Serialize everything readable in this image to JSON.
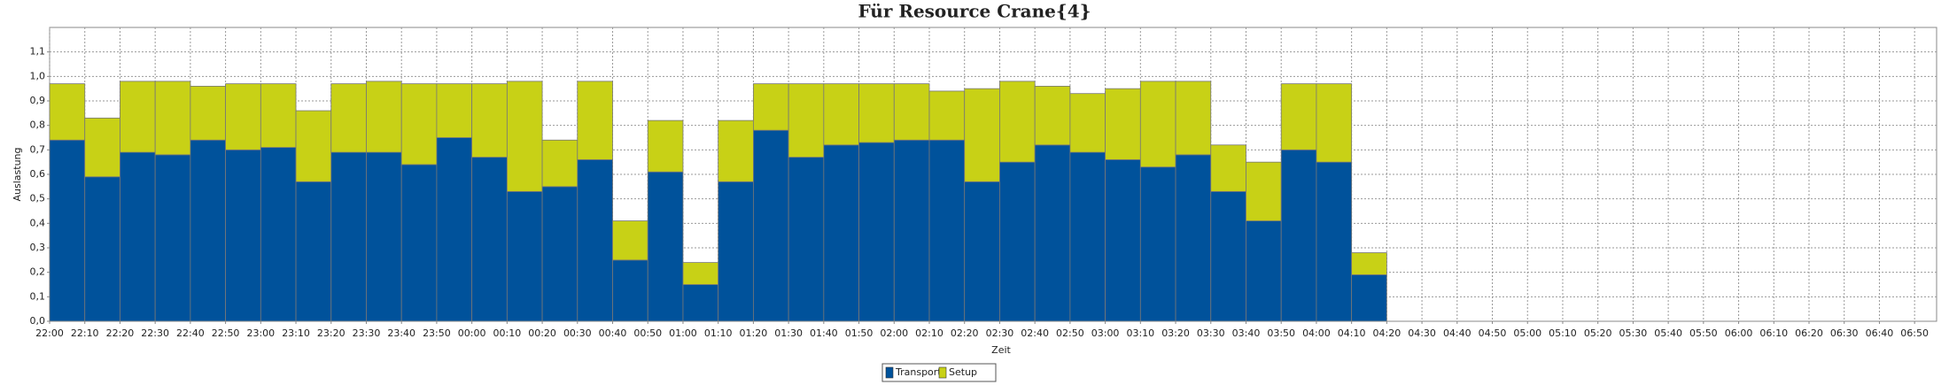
{
  "chart_data": {
    "type": "stacked_bar",
    "title": "Für Resource Crane{4}",
    "xlabel": "Zeit",
    "ylabel": "Auslastung",
    "categories": [
      "22:00",
      "22:10",
      "22:20",
      "22:30",
      "22:40",
      "22:50",
      "23:00",
      "23:10",
      "23:20",
      "23:30",
      "23:40",
      "23:50",
      "00:00",
      "00:10",
      "00:20",
      "00:30",
      "00:40",
      "00:50",
      "01:00",
      "01:10",
      "01:20",
      "01:30",
      "01:40",
      "01:50",
      "02:00",
      "02:10",
      "02:20",
      "02:30",
      "02:40",
      "02:50",
      "03:00",
      "03:10",
      "03:20",
      "03:30",
      "03:40",
      "03:50",
      "04:00",
      "04:10",
      "04:20",
      "04:30",
      "04:40",
      "04:50",
      "05:00",
      "05:10",
      "05:20",
      "05:30",
      "05:40",
      "05:50",
      "06:00",
      "06:10",
      "06:20",
      "06:30",
      "06:40",
      "06:50"
    ],
    "series": [
      {
        "name": "Transport",
        "color": "#00529b",
        "values": [
          0.74,
          0.59,
          0.69,
          0.68,
          0.74,
          0.7,
          0.71,
          0.57,
          0.69,
          0.69,
          0.64,
          0.75,
          0.67,
          0.53,
          0.55,
          0.66,
          0.25,
          0.61,
          0.15,
          0.57,
          0.78,
          0.67,
          0.72,
          0.73,
          0.74,
          0.74,
          0.57,
          0.65,
          0.72,
          0.69,
          0.66,
          0.63,
          0.68,
          0.53,
          0.41,
          0.7,
          0.65,
          0.19,
          null,
          null,
          null,
          null,
          null,
          null,
          null,
          null,
          null,
          null,
          null,
          null,
          null,
          null,
          null,
          null
        ]
      },
      {
        "name": "Setup",
        "color": "#c8d116",
        "values": [
          0.23,
          0.24,
          0.29,
          0.3,
          0.22,
          0.27,
          0.26,
          0.29,
          0.28,
          0.29,
          0.33,
          0.22,
          0.3,
          0.45,
          0.19,
          0.32,
          0.16,
          0.21,
          0.09,
          0.25,
          0.19,
          0.3,
          0.25,
          0.24,
          0.23,
          0.2,
          0.38,
          0.33,
          0.24,
          0.24,
          0.29,
          0.35,
          0.3,
          0.19,
          0.24,
          0.27,
          0.32,
          0.09,
          null,
          null,
          null,
          null,
          null,
          null,
          null,
          null,
          null,
          null,
          null,
          null,
          null,
          null,
          null,
          null
        ]
      }
    ],
    "ylim": [
      0,
      1.2
    ],
    "yticks": [
      {
        "value": 0,
        "label": "0,0"
      },
      {
        "value": 0.1,
        "label": "0,1"
      },
      {
        "value": 0.2,
        "label": "0,2"
      },
      {
        "value": 0.3,
        "label": "0,3"
      },
      {
        "value": 0.4,
        "label": "0,4"
      },
      {
        "value": 0.5,
        "label": "0,5"
      },
      {
        "value": 0.6,
        "label": "0,6"
      },
      {
        "value": 0.7,
        "label": "0,7"
      },
      {
        "value": 0.8,
        "label": "0,8"
      },
      {
        "value": 0.9,
        "label": "0,9"
      },
      {
        "value": 1.0,
        "label": "1,0"
      },
      {
        "value": 1.1,
        "label": "1,1"
      }
    ],
    "grid": true,
    "legend": "bottom"
  }
}
